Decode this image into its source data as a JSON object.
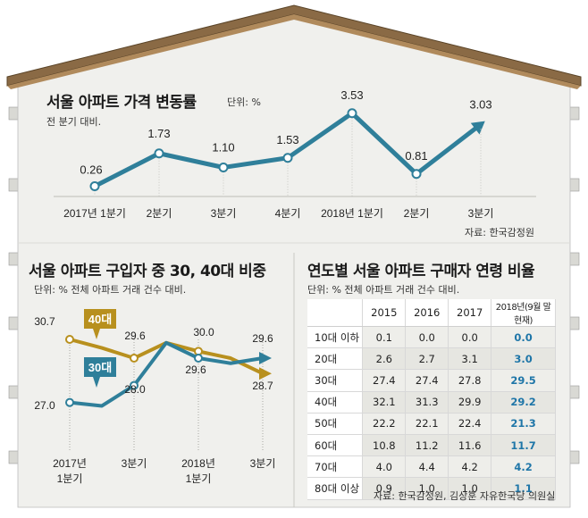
{
  "top": {
    "title": "서울 아파트 가격 변동률",
    "unit": "단위: %",
    "subtitle": "전 분기 대비.",
    "source": "자료: 한국감정원",
    "chart_data": {
      "type": "line",
      "categories": [
        "2017년 1분기",
        "2분기",
        "3분기",
        "4분기",
        "2018년 1분기",
        "2분기",
        "3분기"
      ],
      "values": [
        0.26,
        1.73,
        1.1,
        1.53,
        3.53,
        0.81,
        3.03
      ],
      "value_labels": [
        "0.26",
        "1.73",
        "1.10",
        "1.53",
        "3.53",
        "0.81",
        "3.03"
      ],
      "ylim": [
        0,
        4
      ],
      "line_color": "#2f7f9a"
    }
  },
  "left": {
    "title": "서울 아파트 구입자 중 30, 40대 비중",
    "unit": "단위: %  전체 아파트 거래 건수 대비.",
    "chart_data": {
      "type": "line",
      "categories": [
        "2017년\n1분기",
        "",
        "3분기",
        "",
        "2018년\n1분기",
        "",
        "3분기"
      ],
      "series": [
        {
          "name": "40대",
          "color": "#b8901e",
          "values": [
            30.7,
            30.2,
            29.6,
            30.5,
            30.0,
            29.6,
            28.7
          ],
          "labels": [
            "30.7",
            "",
            "29.6",
            "",
            "30.0",
            "",
            "28.7"
          ]
        },
        {
          "name": "30대",
          "color": "#2f7f9a",
          "values": [
            27.0,
            26.8,
            28.0,
            30.5,
            29.6,
            29.3,
            29.6
          ],
          "labels": [
            "27.0",
            "",
            "28.0",
            "",
            "29.6",
            "",
            "29.6"
          ]
        }
      ],
      "ylim": [
        26,
        32
      ]
    }
  },
  "right": {
    "title": "연도별 서울 아파트 구매자 연령 비율",
    "unit": "단위: %  전체 아파트 거래 건수 대비.",
    "source": "자료: 한국감정원, 김상훈 자유한국당 의원실",
    "chart_data": {
      "type": "table",
      "columns": [
        "2015",
        "2016",
        "2017",
        "2018년(9월 말 현재)"
      ],
      "rows": [
        {
          "label": "10대 이하",
          "values": [
            "0.1",
            "0.0",
            "0.0",
            "0.0"
          ]
        },
        {
          "label": "20대",
          "values": [
            "2.6",
            "2.7",
            "3.1",
            "3.0"
          ]
        },
        {
          "label": "30대",
          "values": [
            "27.4",
            "27.4",
            "27.8",
            "29.5"
          ]
        },
        {
          "label": "40대",
          "values": [
            "32.1",
            "31.3",
            "29.9",
            "29.2"
          ]
        },
        {
          "label": "50대",
          "values": [
            "22.2",
            "22.1",
            "22.4",
            "21.3"
          ]
        },
        {
          "label": "60대",
          "values": [
            "10.8",
            "11.2",
            "11.6",
            "11.7"
          ]
        },
        {
          "label": "70대",
          "values": [
            "4.0",
            "4.4",
            "4.2",
            "4.2"
          ]
        },
        {
          "label": "80대 이상",
          "values": [
            "0.9",
            "1.0",
            "1.0",
            "1.1"
          ]
        }
      ]
    }
  }
}
